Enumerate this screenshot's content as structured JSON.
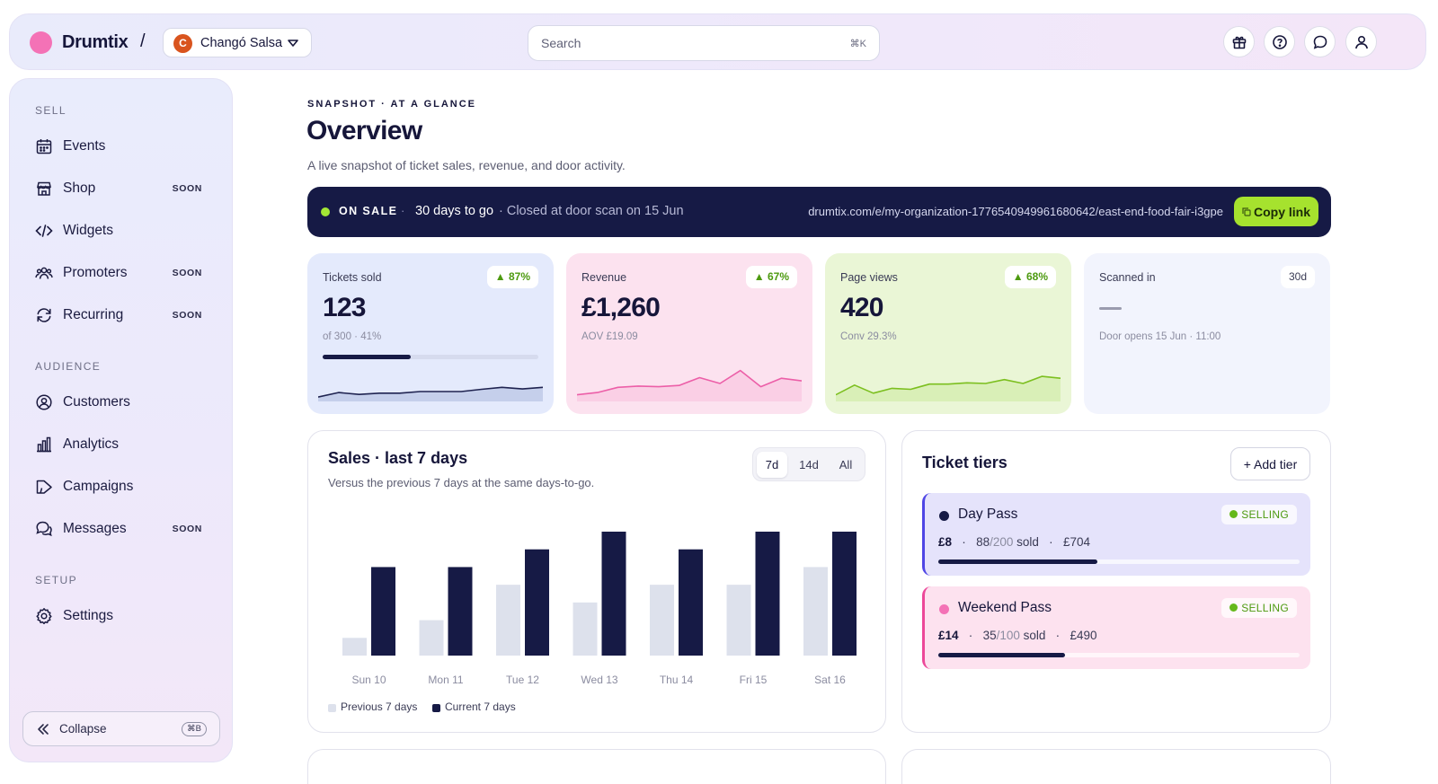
{
  "app": {
    "name": "Drumtix",
    "separator": "/",
    "org": {
      "initial": "C",
      "name": "Changó Salsa"
    },
    "search": {
      "placeholder": "Search",
      "shortcut": "⌘K"
    },
    "top_icons": [
      "gift-icon",
      "help-icon",
      "chat-icon",
      "user-icon"
    ]
  },
  "sidebar": {
    "sections": [
      {
        "title": "SELL",
        "items": [
          {
            "label": "Events",
            "icon": "calendar-icon",
            "soon": ""
          },
          {
            "label": "Shop",
            "icon": "store-icon",
            "soon": "SOON"
          },
          {
            "label": "Widgets",
            "icon": "code-icon",
            "soon": ""
          },
          {
            "label": "Promoters",
            "icon": "people-icon",
            "soon": "SOON"
          },
          {
            "label": "Recurring",
            "icon": "repeat-icon",
            "soon": "SOON"
          }
        ]
      },
      {
        "title": "AUDIENCE",
        "items": [
          {
            "label": "Customers",
            "icon": "user-circle-icon",
            "soon": ""
          },
          {
            "label": "Analytics",
            "icon": "bar-chart-icon",
            "soon": ""
          },
          {
            "label": "Campaigns",
            "icon": "megaphone-icon",
            "soon": ""
          },
          {
            "label": "Messages",
            "icon": "messages-icon",
            "soon": "SOON"
          }
        ]
      },
      {
        "title": "SETUP",
        "items": [
          {
            "label": "Settings",
            "icon": "gear-icon",
            "soon": ""
          }
        ]
      }
    ],
    "collapse": {
      "label": "Collapse",
      "shortcut": "⌘B"
    }
  },
  "header": {
    "eyebrow": "SNAPSHOT · AT A GLANCE",
    "title": "Overview",
    "subtitle": "A live snapshot of ticket sales, revenue, and door activity."
  },
  "banner": {
    "status": "ON SALE",
    "separator": "·",
    "days": "30 days to go",
    "closed": "· Closed at door scan on 15 Jun",
    "url": "drumtix.com/e/my-organization-1776540949961680642/east-end-food-fair-i3gpe",
    "copy_label": "Copy link",
    "colors": {
      "background": "#161a45",
      "status_dot": "#a3e635",
      "button": "#a6e22e"
    }
  },
  "kpis": [
    {
      "label": "Tickets sold",
      "badge": "▲ 87%",
      "value": "123",
      "sub": "of 300 · 41%",
      "progress": 0.41,
      "bg": "#e4eafc",
      "spark": [
        0.08,
        0.22,
        0.16,
        0.2,
        0.2,
        0.25,
        0.25,
        0.25,
        0.32,
        0.38,
        0.33,
        0.38
      ]
    },
    {
      "label": "Revenue",
      "badge": "▲ 67%",
      "value": "£1,260",
      "sub": "AOV £19.09",
      "bg": "#fce2ef",
      "spark": [
        0.15,
        0.22,
        0.38,
        0.42,
        0.4,
        0.44,
        0.68,
        0.5,
        0.9,
        0.4,
        0.66,
        0.58
      ]
    },
    {
      "label": "Page views",
      "badge": "▲ 68%",
      "value": "420",
      "sub": "Conv 29.3%",
      "bg": "#eaf6d6",
      "spark": [
        0.15,
        0.45,
        0.2,
        0.35,
        0.32,
        0.48,
        0.48,
        0.52,
        0.5,
        0.62,
        0.5,
        0.72,
        0.66
      ]
    },
    {
      "label": "Scanned in",
      "badge": "30d",
      "value": "—",
      "sub": "Door opens 15 Jun · 11:00",
      "bg": "#f2f4fd"
    }
  ],
  "sales": {
    "title": "Sales · last 7 days",
    "subtitle": "Versus the previous 7 days at the same days-to-go.",
    "ranges": [
      "7d",
      "14d",
      "All"
    ],
    "active_range": "7d"
  },
  "chart_data": {
    "type": "bar",
    "categories": [
      "Sun 10",
      "Mon 11",
      "Tue 12",
      "Wed 13",
      "Thu 14",
      "Fri 15",
      "Sat 16"
    ],
    "series": [
      {
        "name": "Previous 7 days",
        "values": [
          1,
          2,
          4,
          3,
          4,
          4,
          5
        ],
        "color": "#dde1ec"
      },
      {
        "name": "Current 7 days",
        "values": [
          5,
          5,
          6,
          7,
          6,
          7,
          7
        ],
        "color": "#161a45"
      }
    ],
    "ylim": [
      0,
      7
    ],
    "grid": false,
    "legend": "bottom-left"
  },
  "tiers": {
    "title": "Ticket tiers",
    "add_label": "+ Add tier",
    "items": [
      {
        "name": "Day Pass",
        "status": "SELLING",
        "price": "£8",
        "sold": "88",
        "total": "/200",
        "sold_label": "sold",
        "revenue": "£704",
        "sep": "·",
        "fill": 0.44,
        "bg": "#e5e3fb",
        "accent": "#4f46e5",
        "dot": "#161a45"
      },
      {
        "name": "Weekend Pass",
        "status": "SELLING",
        "price": "£14",
        "sold": "35",
        "total": "/100",
        "sold_label": "sold",
        "revenue": "£490",
        "sep": "·",
        "fill": 0.35,
        "bg": "#fde2ef",
        "accent": "#ec4899",
        "dot": "#f472b6"
      }
    ]
  }
}
